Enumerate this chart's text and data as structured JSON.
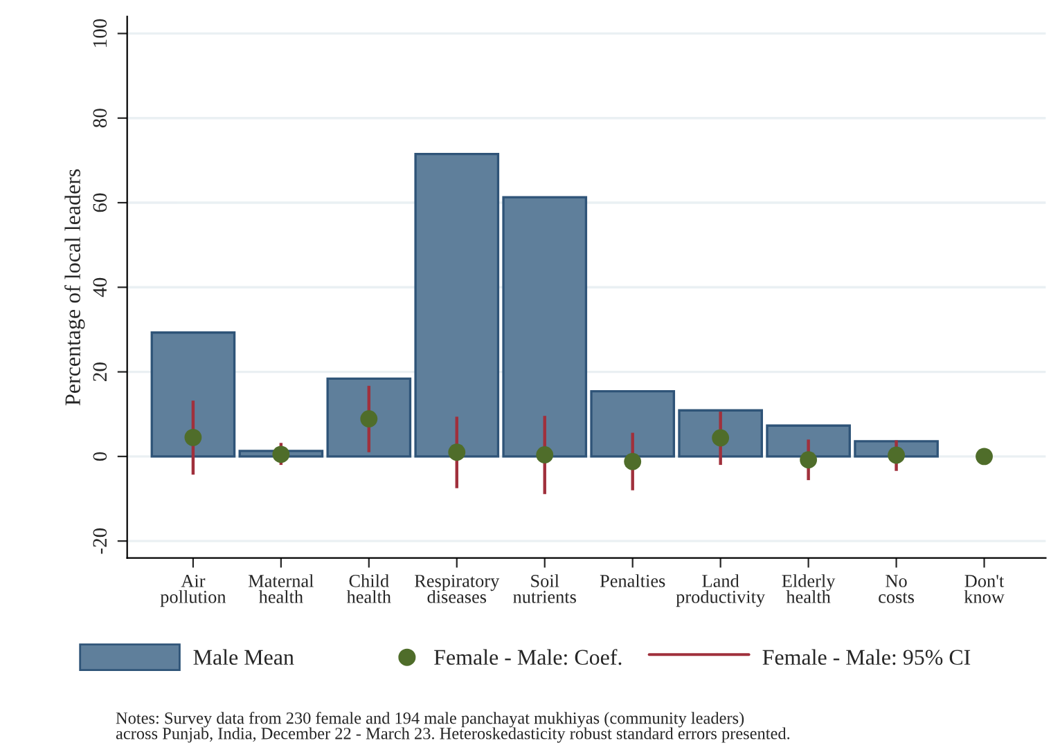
{
  "chart_data": {
    "type": "bar",
    "ylabel": "Percentage of local leaders",
    "categories": [
      "Air\npollution",
      "Maternal\nhealth",
      "Child\nhealth",
      "Respiratory\ndiseases",
      "Soil\nnutrients",
      "Penalties",
      "Land\nproductivity",
      "Elderly\nhealth",
      "No\ncosts",
      "Don't\nknow"
    ],
    "series": [
      {
        "name": "Male Mean",
        "color": "#5f7f9b",
        "values": [
          29.3,
          1.3,
          18.4,
          71.5,
          61.3,
          15.4,
          10.9,
          7.3,
          3.6,
          null
        ]
      },
      {
        "name": "Female - Male: Coef.",
        "type": "scatter",
        "color": "#4f6d2a",
        "marker": "circle",
        "values": [
          4.5,
          0.5,
          8.9,
          1.0,
          0.4,
          -1.2,
          4.4,
          -0.8,
          0.3,
          0.0
        ],
        "errors": [
          [
            -4.3,
            13.2
          ],
          [
            -2.0,
            3.2
          ],
          [
            1.0,
            16.7
          ],
          [
            -7.5,
            9.4
          ],
          [
            -8.9,
            9.6
          ],
          [
            -8.0,
            5.6
          ],
          [
            -2.0,
            10.6
          ],
          [
            -5.6,
            4.0
          ],
          [
            -3.4,
            3.8
          ],
          null
        ]
      },
      {
        "name": "Female - Male: 95% CI",
        "type": "line",
        "color": "#a0303c",
        "values": [
          null,
          null,
          null,
          null,
          null,
          null,
          null,
          null,
          null,
          null
        ]
      }
    ],
    "ylim": [
      -24,
      104
    ],
    "yticks": [
      -20,
      0,
      20,
      40,
      60,
      80,
      100
    ],
    "grid": "y",
    "legend": "bottom",
    "annotations": [
      "Notes: Survey data from 230 female and 194 male panchayat mukhiyas (community leaders)\nacross Punjab, India, December 22 - March 23. Heteroskedasticity robust standard errors presented."
    ]
  }
}
